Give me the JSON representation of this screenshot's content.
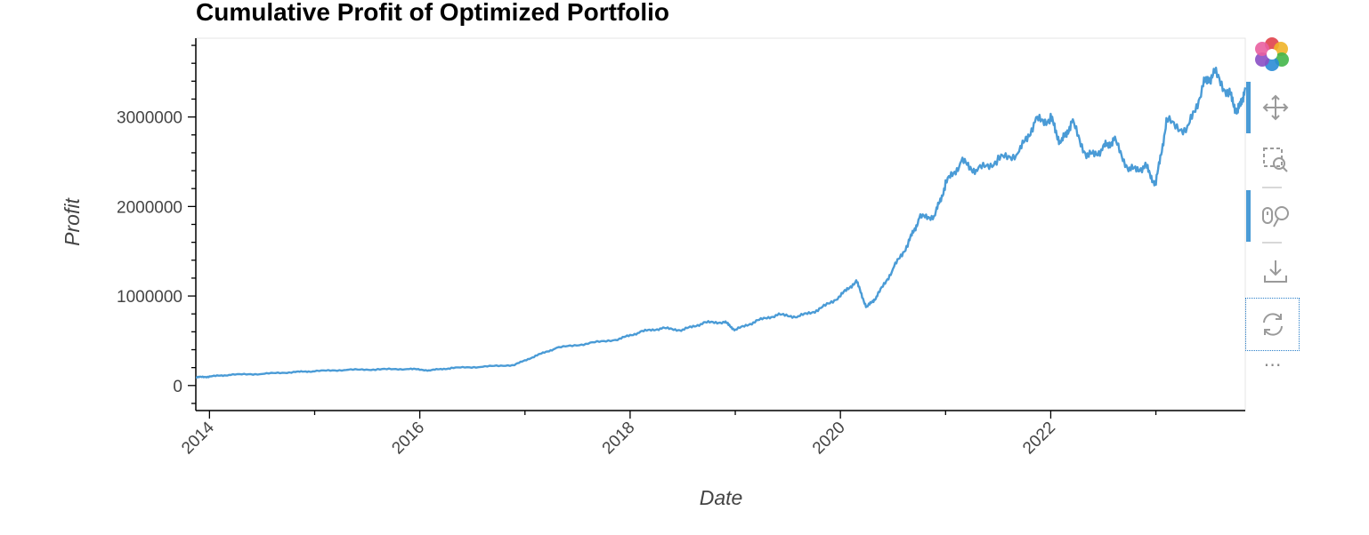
{
  "chart_data": {
    "type": "line",
    "title": "Cumulative Profit of Optimized Portfolio",
    "xlabel": "Date",
    "ylabel": "Profit",
    "xlim": [
      2013.87,
      2023.85
    ],
    "ylim": [
      -280000,
      3880000
    ],
    "x_ticks": [
      "2014",
      "2016",
      "2018",
      "2020",
      "2022"
    ],
    "y_ticks": [
      "0",
      "1000000",
      "2000000",
      "3000000"
    ],
    "series": [
      {
        "color": "#4a9bd6",
        "points": [
          [
            2013.87,
            90000
          ],
          [
            2014.0,
            100000
          ],
          [
            2014.2,
            120000
          ],
          [
            2014.5,
            130000
          ],
          [
            2014.8,
            150000
          ],
          [
            2015.0,
            160000
          ],
          [
            2015.3,
            175000
          ],
          [
            2015.6,
            180000
          ],
          [
            2015.9,
            185000
          ],
          [
            2016.1,
            170000
          ],
          [
            2016.3,
            195000
          ],
          [
            2016.6,
            210000
          ],
          [
            2016.9,
            230000
          ],
          [
            2017.1,
            330000
          ],
          [
            2017.3,
            420000
          ],
          [
            2017.6,
            470000
          ],
          [
            2017.9,
            520000
          ],
          [
            2018.1,
            600000
          ],
          [
            2018.3,
            640000
          ],
          [
            2018.5,
            620000
          ],
          [
            2018.7,
            700000
          ],
          [
            2018.9,
            710000
          ],
          [
            2019.0,
            620000
          ],
          [
            2019.2,
            720000
          ],
          [
            2019.4,
            790000
          ],
          [
            2019.6,
            770000
          ],
          [
            2019.8,
            850000
          ],
          [
            2020.0,
            1000000
          ],
          [
            2020.15,
            1170000
          ],
          [
            2020.25,
            870000
          ],
          [
            2020.35,
            1000000
          ],
          [
            2020.5,
            1300000
          ],
          [
            2020.65,
            1600000
          ],
          [
            2020.75,
            1870000
          ],
          [
            2020.9,
            1900000
          ],
          [
            2021.0,
            2250000
          ],
          [
            2021.15,
            2500000
          ],
          [
            2021.3,
            2400000
          ],
          [
            2021.5,
            2520000
          ],
          [
            2021.7,
            2600000
          ],
          [
            2021.85,
            2950000
          ],
          [
            2022.0,
            2980000
          ],
          [
            2022.1,
            2700000
          ],
          [
            2022.2,
            2950000
          ],
          [
            2022.35,
            2550000
          ],
          [
            2022.5,
            2650000
          ],
          [
            2022.6,
            2750000
          ],
          [
            2022.75,
            2400000
          ],
          [
            2022.9,
            2450000
          ],
          [
            2023.0,
            2250000
          ],
          [
            2023.1,
            2950000
          ],
          [
            2023.3,
            2850000
          ],
          [
            2023.45,
            3350000
          ],
          [
            2023.55,
            3500000
          ],
          [
            2023.7,
            3250000
          ],
          [
            2023.78,
            3050000
          ],
          [
            2023.85,
            3330000
          ]
        ]
      }
    ]
  },
  "toolbar": {
    "tools": [
      {
        "name": "logo-icon"
      },
      {
        "name": "pan-tool-icon"
      },
      {
        "name": "box-zoom-tool-icon"
      },
      {
        "name": "wheel-zoom-tool-icon"
      },
      {
        "name": "save-tool-icon"
      },
      {
        "name": "reset-tool-icon"
      }
    ],
    "more": "⋯"
  }
}
